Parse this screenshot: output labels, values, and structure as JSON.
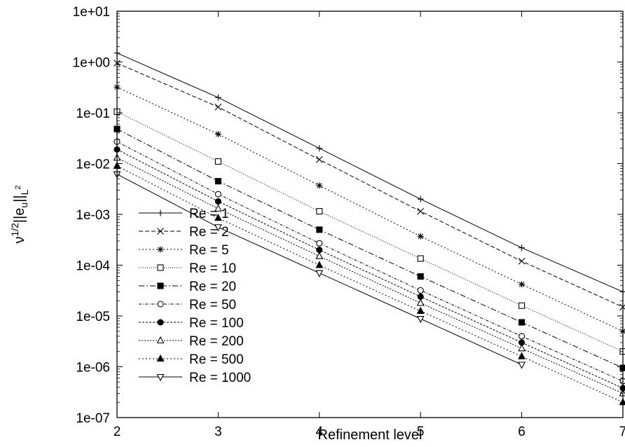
{
  "chart_data": {
    "type": "line",
    "title": "",
    "xlabel": "Refinement level",
    "ylabel_parts": {
      "nu": "ν",
      "exp": "1/2",
      "norm_open": "||e",
      "sub_u": "u",
      "norm_close": "||",
      "sub_L": "L",
      "sup_2": "2"
    },
    "xlim": [
      2,
      7
    ],
    "ylim": [
      1e-07,
      10
    ],
    "yscale": "log",
    "grid": false,
    "legend_position": "lower-left",
    "x_ticks": [
      "2",
      "3",
      "4",
      "5",
      "6",
      "7"
    ],
    "y_ticks": [
      "1e+01",
      "1e+00",
      "1e-01",
      "1e-02",
      "1e-03",
      "1e-04",
      "1e-05",
      "1e-06",
      "1e-07"
    ],
    "series": [
      {
        "name": "Re = 1",
        "marker": "plus",
        "dash": "",
        "x": [
          2,
          3,
          4,
          5,
          6,
          7
        ],
        "y": [
          1.5,
          0.2,
          0.02,
          0.002,
          0.00022,
          3e-05
        ]
      },
      {
        "name": "Re = 2",
        "marker": "cross",
        "dash": "6,3",
        "x": [
          2,
          3,
          4,
          5,
          6,
          7
        ],
        "y": [
          0.95,
          0.13,
          0.012,
          0.00115,
          0.00012,
          1.5e-05
        ]
      },
      {
        "name": "Re = 5",
        "marker": "star",
        "dash": "2,3",
        "x": [
          2,
          3,
          4,
          5,
          6,
          7
        ],
        "y": [
          0.32,
          0.038,
          0.0037,
          0.00037,
          4.2e-05,
          5e-06
        ]
      },
      {
        "name": "Re = 10",
        "marker": "square-open",
        "dash": "1,2",
        "x": [
          2,
          3,
          4,
          5,
          6,
          7
        ],
        "y": [
          0.105,
          0.011,
          0.00115,
          0.000135,
          1.6e-05,
          2e-06
        ]
      },
      {
        "name": "Re = 20",
        "marker": "square-filled",
        "dash": "8,3,2,3",
        "x": [
          2,
          3,
          4,
          5,
          6,
          7
        ],
        "y": [
          0.048,
          0.0045,
          0.0005,
          6e-05,
          7.5e-06,
          9.5e-07
        ]
      },
      {
        "name": "Re = 50",
        "marker": "circle-open",
        "dash": "4,2,1,2",
        "x": [
          2,
          3,
          4,
          5,
          6,
          7
        ],
        "y": [
          0.027,
          0.0025,
          0.00027,
          3.2e-05,
          4e-06,
          5.2e-07
        ]
      },
      {
        "name": "Re = 100",
        "marker": "circle-filled",
        "dash": "3,2",
        "x": [
          2,
          3,
          4,
          5,
          6,
          7
        ],
        "y": [
          0.019,
          0.0018,
          0.0002,
          2.4e-05,
          3e-06,
          3.8e-07
        ]
      },
      {
        "name": "Re = 200",
        "marker": "triangle-open",
        "dash": "2,2",
        "x": [
          2,
          3,
          4,
          5,
          6,
          7
        ],
        "y": [
          0.013,
          0.0013,
          0.00015,
          1.8e-05,
          2.3e-06,
          3e-07
        ]
      },
      {
        "name": "Re = 500",
        "marker": "triangle-filled",
        "dash": "2,3",
        "x": [
          2,
          3,
          4,
          5,
          6,
          7
        ],
        "y": [
          0.009,
          0.00085,
          0.0001,
          1.25e-05,
          1.6e-06,
          2e-07
        ]
      },
      {
        "name": "Re = 1000",
        "marker": "invtriangle-open",
        "dash": "",
        "x": [
          2,
          3,
          4,
          5,
          6
        ],
        "y": [
          0.0062,
          0.00056,
          7e-05,
          8.8e-06,
          1.1e-06
        ]
      }
    ]
  }
}
